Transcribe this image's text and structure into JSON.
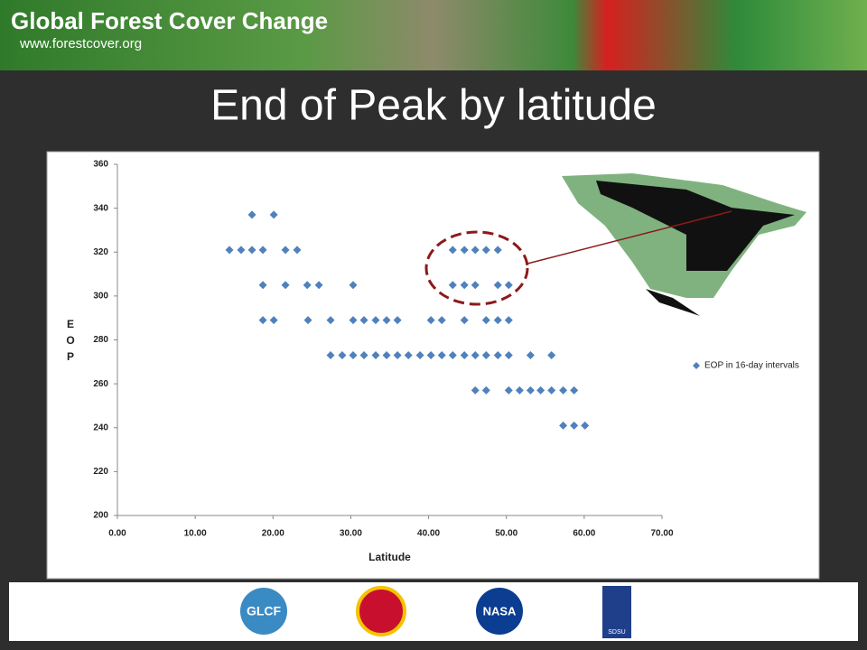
{
  "banner": {
    "title": "Global Forest Cover Change",
    "url": "www.forestcover.org"
  },
  "logos": [
    "GLCF",
    "NASA",
    "SDSU"
  ],
  "chart_data": {
    "type": "scatter",
    "title": "End of Peak by latitude",
    "x_label": "Latitude",
    "y_label": "EOP",
    "xlim": [
      0,
      70
    ],
    "xticks": [
      {
        "value": 0,
        "label": "0.00"
      },
      {
        "value": 10,
        "label": "10.00"
      },
      {
        "value": 20,
        "label": "20.00"
      },
      {
        "value": 30,
        "label": "30.00"
      },
      {
        "value": 40,
        "label": "40.00"
      },
      {
        "value": 50,
        "label": "50.00"
      },
      {
        "value": 60,
        "label": "60.00"
      },
      {
        "value": 70,
        "label": "70.00"
      }
    ],
    "ylim": [
      200,
      360
    ],
    "yticks": [
      200,
      220,
      240,
      260,
      280,
      300,
      320,
      340,
      360
    ],
    "legend": "right",
    "series": [
      {
        "name": "EOP in 16-day intervals",
        "color": "#4f81bd",
        "x": [
          17.3,
          20.1,
          14.4,
          15.9,
          17.3,
          18.7,
          21.6,
          23.1,
          43.1,
          44.6,
          46.0,
          47.4,
          48.9,
          18.7,
          21.6,
          24.4,
          25.9,
          30.3,
          43.1,
          44.6,
          46.0,
          48.9,
          50.3,
          18.7,
          20.1,
          24.5,
          27.4,
          30.3,
          31.7,
          33.2,
          34.6,
          36.0,
          40.3,
          41.7,
          44.6,
          47.4,
          48.9,
          50.3,
          27.4,
          28.9,
          30.3,
          31.7,
          33.2,
          34.6,
          36.0,
          37.4,
          38.9,
          40.3,
          41.7,
          43.1,
          44.6,
          46.0,
          47.4,
          48.9,
          50.3,
          53.1,
          55.8,
          46.0,
          47.4,
          50.3,
          51.7,
          53.1,
          54.4,
          55.8,
          57.3,
          58.7,
          57.3,
          58.7,
          60.1
        ],
        "values": [
          337,
          337,
          321,
          321,
          321,
          321,
          321,
          321,
          321,
          321,
          321,
          321,
          321,
          305,
          305,
          305,
          305,
          305,
          305,
          305,
          305,
          305,
          305,
          289,
          289,
          289,
          289,
          289,
          289,
          289,
          289,
          289,
          289,
          289,
          289,
          289,
          289,
          289,
          273,
          273,
          273,
          273,
          273,
          273,
          273,
          273,
          273,
          273,
          273,
          273,
          273,
          273,
          273,
          273,
          273,
          273,
          273,
          257,
          257,
          257,
          257,
          257,
          257,
          257,
          257,
          257,
          241,
          241,
          241
        ]
      }
    ]
  }
}
